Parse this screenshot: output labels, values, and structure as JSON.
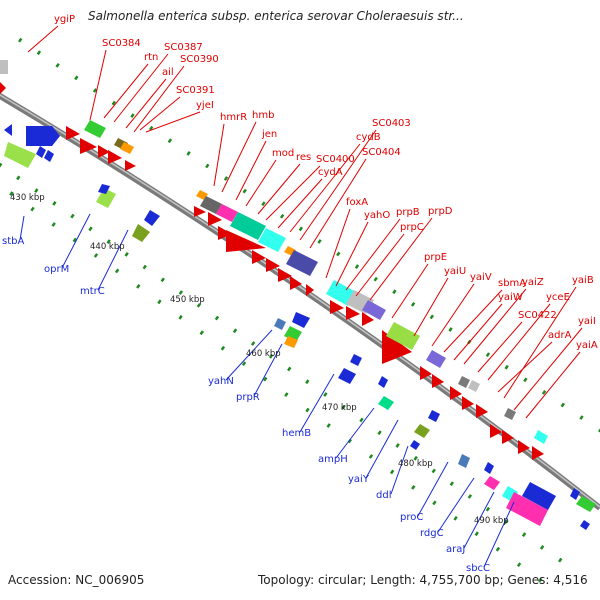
{
  "title": "Salmonella enterica subsp. enterica serovar Choleraesuis str...",
  "footer": {
    "accession": "Accession: NC_006905",
    "topology": "Topology: circular; Length: 4,755,700 bp; Genes: 4,516"
  },
  "kbp_labels": [
    "430 kbp",
    "440 kbp",
    "450 kbp",
    "460 kbp",
    "470 kbp",
    "480 kbp",
    "490 kbp"
  ],
  "forward_genes": [
    "ygiP",
    "SC0384",
    "rtn",
    "SC0387",
    "ail",
    "SC0390",
    "SC0391",
    "yjeI",
    "hmrR",
    "hmb",
    "jen",
    "mod",
    "res",
    "SC0400",
    "cydA",
    "cydB",
    "SC0403",
    "SC0404",
    "foxA",
    "yahO",
    "prpB",
    "prpC",
    "prpD",
    "prpE",
    "yaiU",
    "yaiV",
    "sbmA",
    "yaiW",
    "yaiZ",
    "SC0422",
    "yceE",
    "yaiB",
    "adrA",
    "yaiI",
    "yaiA"
  ],
  "reverse_genes": [
    "stbA",
    "oprM",
    "mtrC",
    "yahN",
    "prpR",
    "hemB",
    "ampH",
    "yaiY",
    "ddl",
    "proC",
    "rdgC",
    "araJ",
    "sbcC"
  ],
  "colors": {
    "forward": "#e00000",
    "reverse": "#1a2bd6",
    "backbone": "#7f7f7f",
    "tick": "#1f8a1f"
  }
}
